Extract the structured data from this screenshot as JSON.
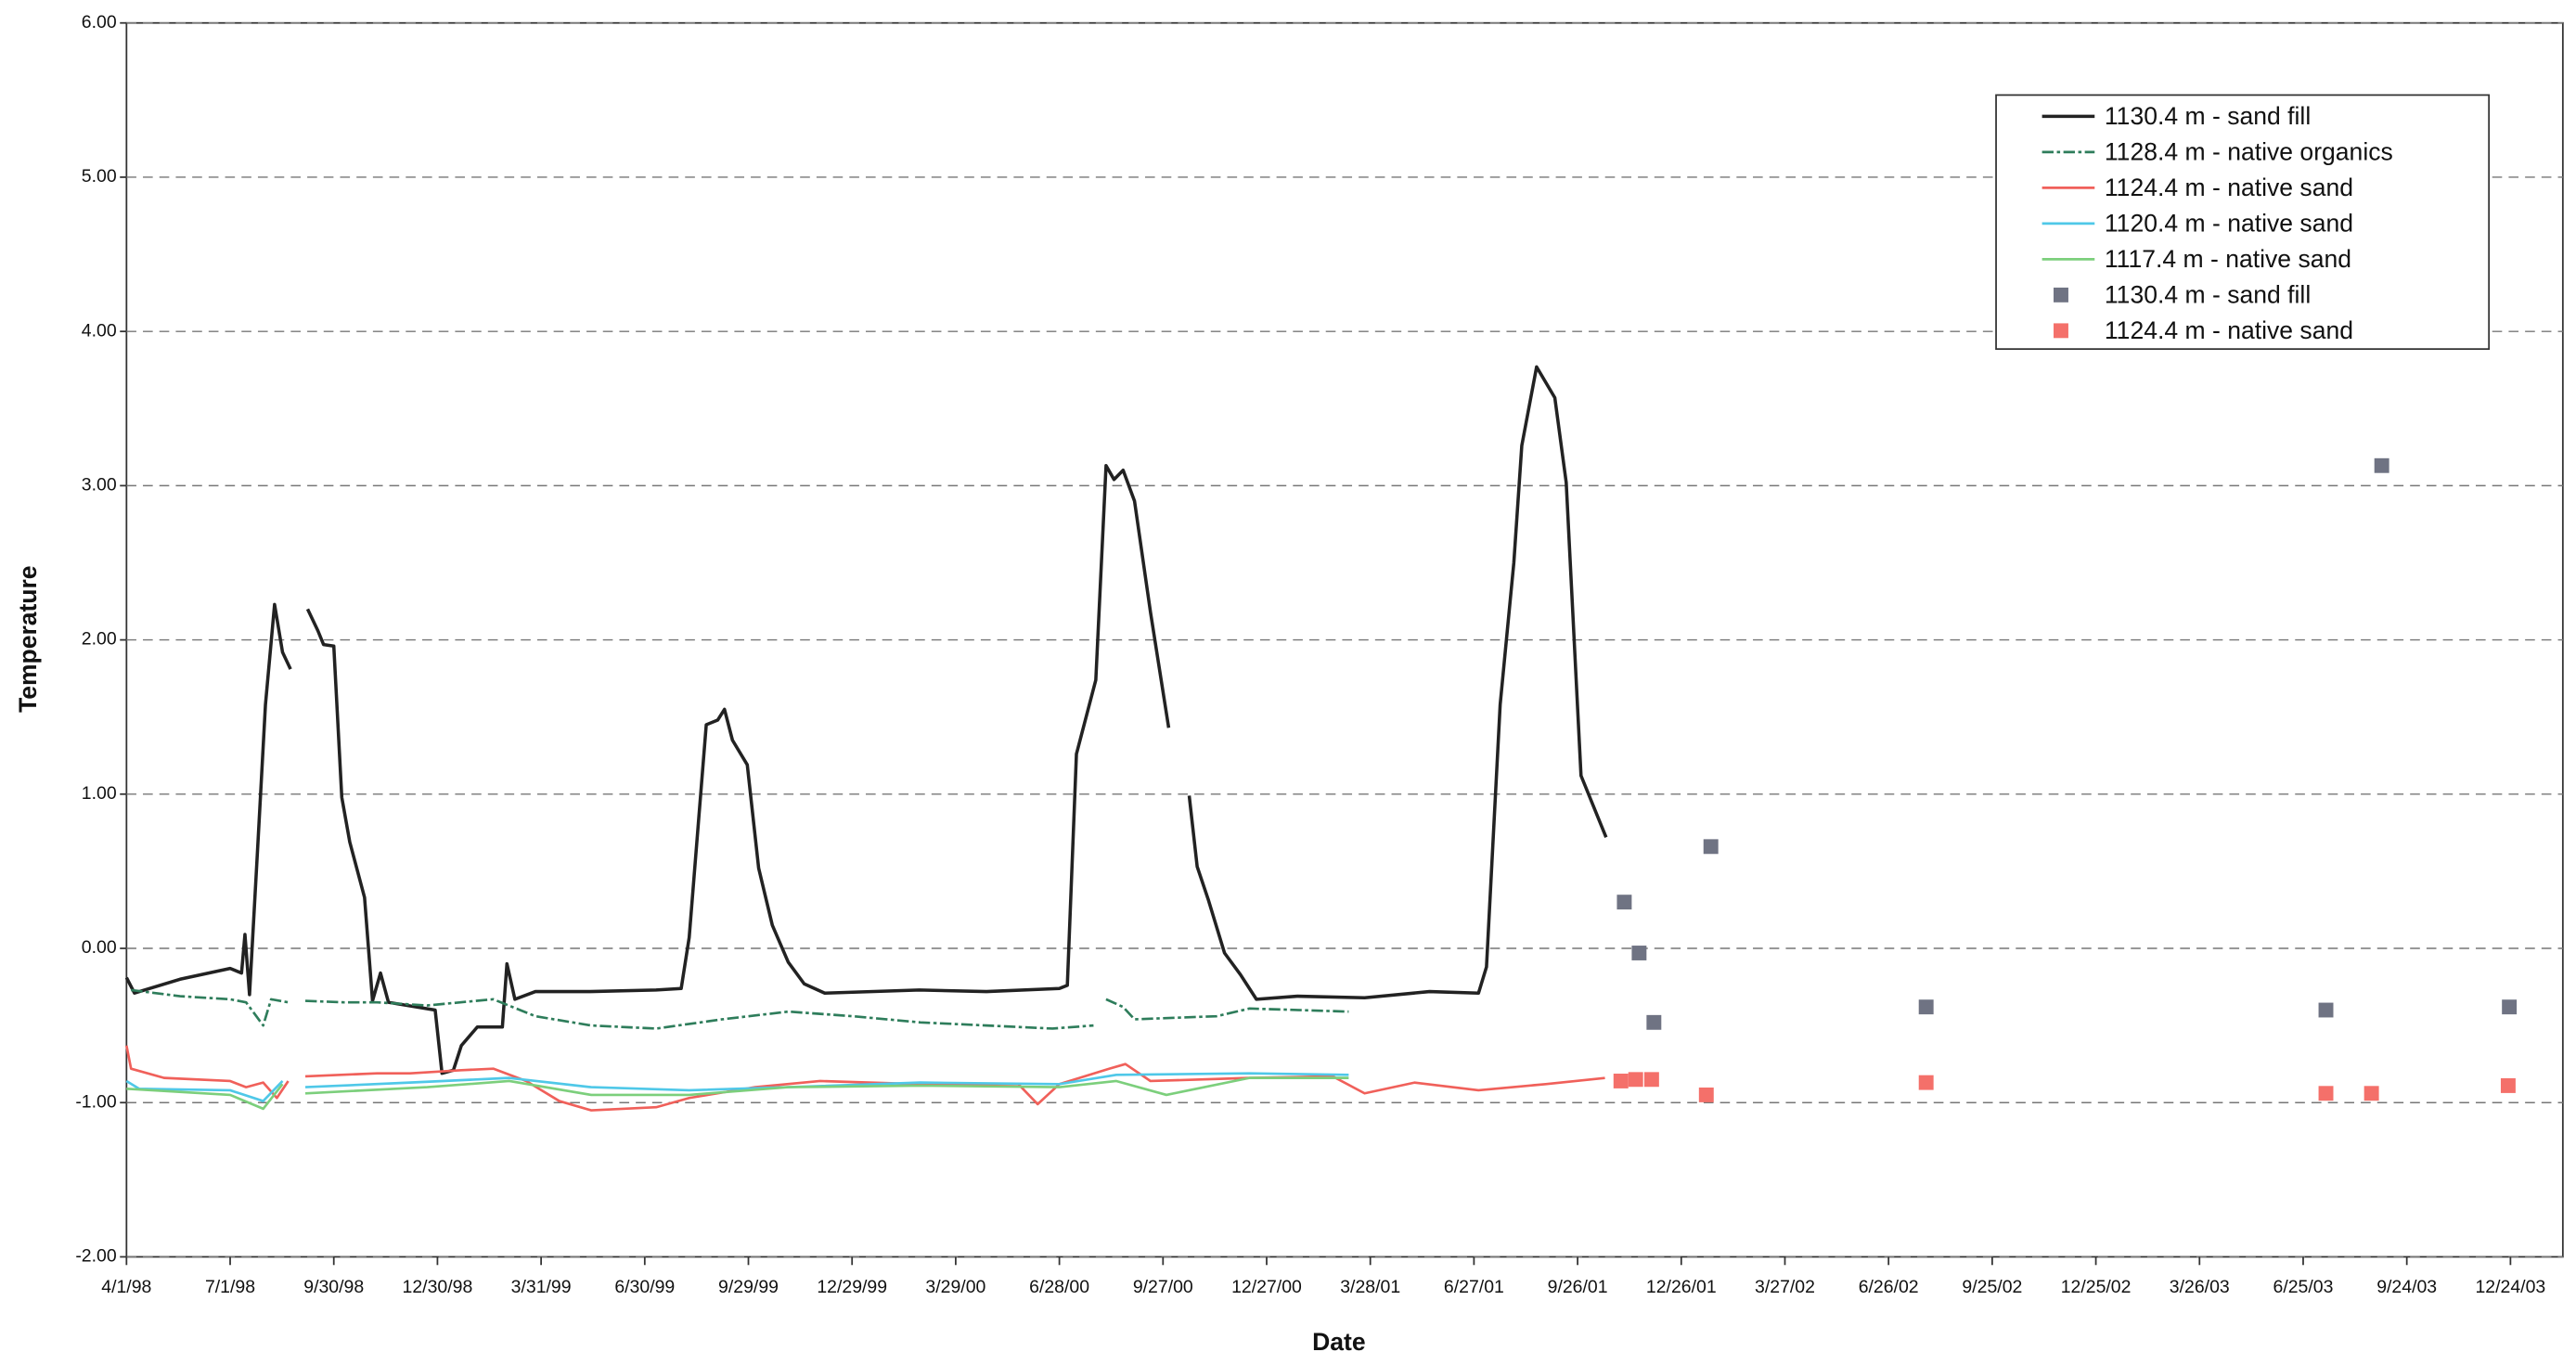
{
  "chart_data": {
    "type": "line",
    "x_label": "Date",
    "y_label": "Temperature",
    "xlim": [
      "1998-04-01",
      "2004-02-08"
    ],
    "ylim": [
      -2,
      6
    ],
    "grid": true,
    "legend": "top-right",
    "xticks": [
      {
        "value": "1998-04-01",
        "label": "4/1/98"
      },
      {
        "value": "1998-07-01",
        "label": "7/1/98"
      },
      {
        "value": "1998-09-30",
        "label": "9/30/98"
      },
      {
        "value": "1998-12-30",
        "label": "12/30/98"
      },
      {
        "value": "1999-03-31",
        "label": "3/31/99"
      },
      {
        "value": "1999-06-30",
        "label": "6/30/99"
      },
      {
        "value": "1999-09-29",
        "label": "9/29/99"
      },
      {
        "value": "1999-12-29",
        "label": "12/29/99"
      },
      {
        "value": "2000-03-29",
        "label": "3/29/00"
      },
      {
        "value": "2000-06-28",
        "label": "6/28/00"
      },
      {
        "value": "2000-09-27",
        "label": "9/27/00"
      },
      {
        "value": "2000-12-27",
        "label": "12/27/00"
      },
      {
        "value": "2001-03-28",
        "label": "3/28/01"
      },
      {
        "value": "2001-06-27",
        "label": "6/27/01"
      },
      {
        "value": "2001-09-26",
        "label": "9/26/01"
      },
      {
        "value": "2001-12-26",
        "label": "12/26/01"
      },
      {
        "value": "2002-03-27",
        "label": "3/27/02"
      },
      {
        "value": "2002-06-26",
        "label": "6/26/02"
      },
      {
        "value": "2002-09-25",
        "label": "9/25/02"
      },
      {
        "value": "2002-12-25",
        "label": "12/25/02"
      },
      {
        "value": "2003-03-26",
        "label": "3/26/03"
      },
      {
        "value": "2003-06-25",
        "label": "6/25/03"
      },
      {
        "value": "2003-09-24",
        "label": "9/24/03"
      },
      {
        "value": "2003-12-24",
        "label": "12/24/03"
      }
    ],
    "yticks": [
      {
        "value": -2,
        "label": "-2.00"
      },
      {
        "value": -1,
        "label": "-1.00"
      },
      {
        "value": 0,
        "label": "0.00"
      },
      {
        "value": 1,
        "label": "1.00"
      },
      {
        "value": 2,
        "label": "2.00"
      },
      {
        "value": 3,
        "label": "3.00"
      },
      {
        "value": 4,
        "label": "4.00"
      },
      {
        "value": 5,
        "label": "5.00"
      },
      {
        "value": 6,
        "label": "6.00"
      }
    ],
    "series": [
      {
        "name": "1130.4 m - sand fill",
        "color": "#222222",
        "style": "solid",
        "x": [
          "1998-04-01",
          "1998-04-08",
          "1998-05-18",
          "1998-07-01",
          "1998-07-11",
          "1998-07-14",
          "1998-07-18",
          "1998-07-25",
          "1998-08-01",
          "1998-08-09",
          "1998-08-16",
          "1998-08-23",
          null,
          "1998-09-07",
          "1998-09-16",
          "1998-09-21",
          "1998-09-30",
          "1998-10-07",
          "1998-10-14",
          "1998-10-27",
          "1998-11-03",
          "1998-11-10",
          "1998-11-17",
          "1998-12-28",
          "1999-01-03",
          "1999-01-13",
          "1999-01-20",
          "1999-02-03",
          "1999-02-25",
          "1999-03-01",
          "1999-03-08",
          "1999-03-26",
          "1999-05-13",
          "1999-07-10",
          "1999-08-01",
          "1999-08-08",
          "1999-08-23",
          "1999-09-02",
          "1999-09-08",
          "1999-09-15",
          "1999-09-28",
          "1999-10-08",
          "1999-10-20",
          "1999-11-03",
          "1999-11-17",
          "1999-12-05",
          "2000-02-26",
          "2000-04-25",
          "2000-06-28",
          "2000-07-05",
          "2000-07-13",
          "2000-07-30",
          "2000-08-08",
          "2000-08-15",
          "2000-08-23",
          "2000-09-02",
          "2000-09-16",
          "2000-10-02",
          null,
          "2000-10-20",
          "2000-10-27",
          "2000-11-06",
          "2000-11-20",
          "2000-12-04",
          "2000-12-18",
          "2001-01-23",
          "2001-03-23",
          "2001-05-19",
          "2001-07-01",
          "2001-07-08",
          "2001-07-20",
          "2001-08-01",
          "2001-08-08",
          "2001-08-21",
          "2001-09-06",
          "2001-09-16",
          "2001-09-29",
          "2001-10-21"
        ],
        "values": [
          -0.19,
          -0.29,
          -0.2,
          -0.13,
          -0.16,
          0.09,
          -0.3,
          0.63,
          1.58,
          2.23,
          1.92,
          1.81,
          null,
          2.2,
          2.06,
          1.97,
          1.96,
          0.98,
          0.69,
          0.33,
          -0.34,
          -0.16,
          -0.35,
          -0.4,
          -0.81,
          -0.79,
          -0.63,
          -0.51,
          -0.51,
          -0.1,
          -0.33,
          -0.28,
          -0.28,
          -0.27,
          -0.26,
          0.07,
          1.45,
          1.48,
          1.55,
          1.35,
          1.19,
          0.52,
          0.15,
          -0.09,
          -0.23,
          -0.29,
          -0.27,
          -0.28,
          -0.26,
          -0.24,
          1.26,
          1.74,
          3.13,
          3.04,
          3.1,
          2.9,
          2.18,
          1.43,
          null,
          0.99,
          0.53,
          0.31,
          -0.03,
          -0.17,
          -0.33,
          -0.31,
          -0.32,
          -0.28,
          -0.29,
          -0.12,
          1.58,
          2.5,
          3.26,
          3.77,
          3.57,
          3.02,
          1.12,
          0.72
        ]
      },
      {
        "name": "1128.4 m - native organics",
        "color": "#2e7d5b",
        "style": "dash-dot",
        "x": [
          "1998-04-05",
          "1998-05-18",
          "1998-07-01",
          "1998-07-15",
          "1998-07-30",
          "1998-08-06",
          "1998-08-21",
          null,
          "1998-09-05",
          "1998-10-09",
          "1998-11-07",
          "1998-12-21",
          "1999-02-17",
          "1999-03-26",
          "1999-05-14",
          "1999-07-10",
          "1999-09-06",
          "1999-11-03",
          "1999-12-30",
          "2000-02-27",
          "2000-04-25",
          "2000-06-22",
          "2000-07-28",
          null,
          "2000-08-08",
          "2000-08-23",
          "2000-09-02",
          "2000-11-13",
          "2000-12-12",
          "2001-03-09"
        ],
        "values": [
          -0.27,
          -0.31,
          -0.33,
          -0.35,
          -0.5,
          -0.33,
          -0.35,
          null,
          -0.34,
          -0.35,
          -0.35,
          -0.37,
          -0.33,
          -0.44,
          -0.5,
          -0.52,
          -0.46,
          -0.41,
          -0.44,
          -0.48,
          -0.5,
          -0.52,
          -0.5,
          null,
          -0.33,
          -0.38,
          -0.46,
          -0.44,
          -0.39,
          -0.41
        ]
      },
      {
        "name": "1124.4 m - native sand",
        "color": "#f0605a",
        "style": "solid",
        "x": [
          "1998-04-01",
          "1998-04-05",
          "1998-05-04",
          "1998-07-01",
          "1998-07-15",
          "1998-07-30",
          "1998-08-11",
          "1998-08-21",
          null,
          "1998-09-05",
          "1998-11-07",
          "1998-12-06",
          "1999-01-20",
          "1999-02-17",
          "1999-03-18",
          "1999-04-16",
          "1999-05-14",
          "1999-07-10",
          "1999-08-08",
          "1999-10-05",
          "1999-12-01",
          "2000-02-27",
          "2000-05-23",
          "2000-06-09",
          "2000-06-28",
          "2000-08-11",
          "2000-08-25",
          "2000-09-16",
          "2000-12-12",
          "2001-02-23",
          "2001-03-23",
          "2001-05-06",
          "2001-07-01",
          "2001-08-29",
          "2001-10-20"
        ],
        "values": [
          -0.63,
          -0.78,
          -0.84,
          -0.86,
          -0.9,
          -0.87,
          -0.97,
          -0.86,
          null,
          -0.83,
          -0.81,
          -0.81,
          -0.79,
          -0.78,
          -0.86,
          -0.99,
          -1.05,
          -1.03,
          -0.97,
          -0.9,
          -0.86,
          -0.88,
          -0.88,
          -1.01,
          -0.88,
          -0.78,
          -0.75,
          -0.86,
          -0.84,
          -0.83,
          -0.94,
          -0.87,
          -0.92,
          -0.88,
          -0.84
        ]
      },
      {
        "name": "1120.4 m - native sand",
        "color": "#4fc8e8",
        "style": "solid",
        "x": [
          "1998-04-01",
          "1998-04-12",
          "1998-07-01",
          "1998-07-30",
          "1998-08-16",
          null,
          "1998-09-05",
          "1998-12-06",
          "1999-03-03",
          "1999-05-14",
          "1999-08-08",
          "1999-11-03",
          "2000-02-27",
          "2000-06-28",
          "2000-08-17",
          "2000-12-12",
          "2001-03-09"
        ],
        "values": [
          -0.86,
          -0.91,
          -0.92,
          -0.99,
          -0.86,
          null,
          -0.9,
          -0.87,
          -0.84,
          -0.9,
          -0.92,
          -0.9,
          -0.87,
          -0.88,
          -0.82,
          -0.81,
          -0.82
        ]
      },
      {
        "name": "1117.4 m - native sand",
        "color": "#7ccf7c",
        "style": "solid",
        "x": [
          "1998-04-01",
          "1998-07-01",
          "1998-07-30",
          "1998-08-16",
          null,
          "1998-09-05",
          "1998-12-21",
          "1999-03-03",
          "1999-05-14",
          "1999-08-08",
          "1999-11-03",
          "2000-02-27",
          "2000-06-28",
          "2000-08-17",
          "2000-09-30",
          "2000-12-12",
          "2001-03-09"
        ],
        "values": [
          -0.91,
          -0.95,
          -1.04,
          -0.88,
          null,
          -0.94,
          -0.9,
          -0.86,
          -0.95,
          -0.95,
          -0.9,
          -0.89,
          -0.9,
          -0.86,
          -0.95,
          -0.84,
          -0.84
        ]
      },
      {
        "name": "1130.4 m - sand fill",
        "color": "#6f7383",
        "style": "marker",
        "x": [
          "2001-11-06",
          "2001-11-19",
          "2001-12-02",
          "2002-01-21",
          "2002-07-29",
          "2003-07-15",
          "2003-09-02",
          "2003-12-23"
        ],
        "values": [
          0.3,
          -0.03,
          -0.48,
          0.66,
          -0.38,
          -0.4,
          3.13,
          -0.38
        ]
      },
      {
        "name": "1124.4 m - native sand",
        "color": "#f4706a",
        "style": "marker",
        "x": [
          "2001-11-03",
          "2001-11-16",
          "2001-11-30",
          "2002-01-17",
          "2002-07-29",
          "2003-07-15",
          "2003-08-24",
          "2003-12-22"
        ],
        "values": [
          -0.86,
          -0.85,
          -0.85,
          -0.95,
          -0.87,
          -0.94,
          -0.94,
          -0.89
        ]
      }
    ]
  }
}
